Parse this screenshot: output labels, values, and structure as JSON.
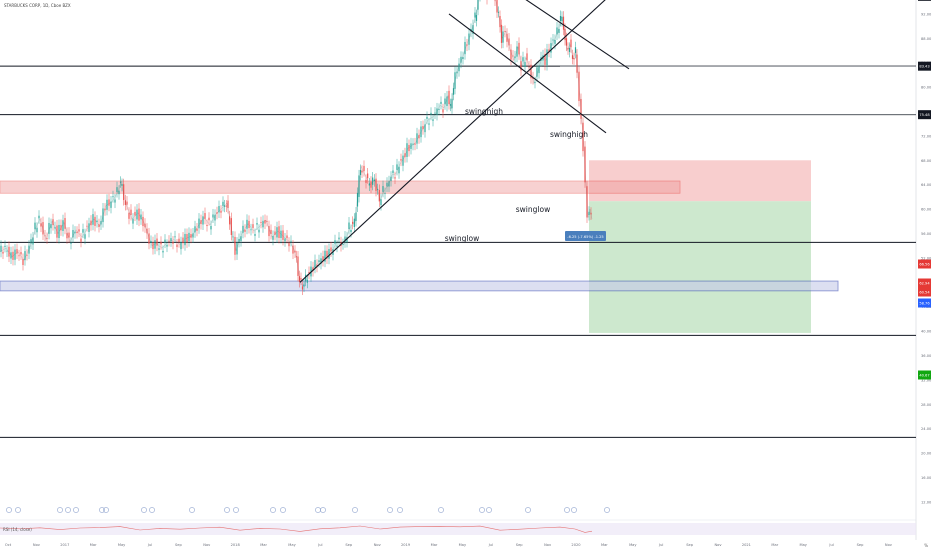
{
  "symbol_line": "STARBUCKS CORP, 1D, Cboe BZX",
  "indicator_label": "RSI (14, close)",
  "scale_button": "%",
  "chart_data": {
    "type": "line",
    "title": "",
    "xlabel": "",
    "ylabel": "",
    "ylim": [
      6,
      119
    ],
    "x_ticks": [
      "Oct",
      "Nov",
      "2017",
      "Mar",
      "May",
      "Jul",
      "Sep",
      "Nov",
      "2018",
      "Mar",
      "May",
      "Jul",
      "Sep",
      "Nov",
      "2019",
      "Mar",
      "May",
      "Jul",
      "Sep",
      "Nov",
      "2020",
      "Mar",
      "May",
      "Jul",
      "Sep",
      "Nov",
      "2021",
      "Mar",
      "May",
      "Jul",
      "Sep",
      "Nov",
      "2022",
      "Mar"
    ],
    "y_ticks": [
      12.0,
      16.0,
      20.0,
      24.0,
      28.0,
      32.0,
      36.0,
      40.0,
      44.0,
      48.0,
      52.0,
      56.0,
      60.0,
      64.0,
      68.0,
      72.0,
      76.0,
      80.0,
      84.0,
      88.0,
      92.0,
      96.0,
      100.0,
      104.0,
      108.0,
      112.0,
      116.0
    ],
    "price_series": [
      [
        0,
        53.0
      ],
      [
        6,
        53.6
      ],
      [
        12,
        52.2
      ],
      [
        18,
        53.0
      ],
      [
        24,
        51.6
      ],
      [
        30,
        53.8
      ],
      [
        36,
        57.0
      ],
      [
        40,
        58.4
      ],
      [
        46,
        55.0
      ],
      [
        52,
        58.0
      ],
      [
        58,
        56.0
      ],
      [
        64,
        57.8
      ],
      [
        70,
        54.6
      ],
      [
        76,
        56.6
      ],
      [
        82,
        55.4
      ],
      [
        88,
        57.0
      ],
      [
        94,
        58.4
      ],
      [
        100,
        57.2
      ],
      [
        106,
        60.6
      ],
      [
        112,
        61.2
      ],
      [
        118,
        62.8
      ],
      [
        121,
        64.6
      ],
      [
        126,
        60.8
      ],
      [
        132,
        58.4
      ],
      [
        138,
        59.4
      ],
      [
        144,
        57.8
      ],
      [
        148,
        55.8
      ],
      [
        152,
        54.0
      ],
      [
        156,
        54.4
      ],
      [
        162,
        53.6
      ],
      [
        168,
        54.6
      ],
      [
        174,
        55.0
      ],
      [
        180,
        54.2
      ],
      [
        186,
        55.2
      ],
      [
        192,
        55.6
      ],
      [
        198,
        57.2
      ],
      [
        204,
        58.6
      ],
      [
        210,
        57.4
      ],
      [
        216,
        59.2
      ],
      [
        222,
        60.2
      ],
      [
        227,
        61.0
      ],
      [
        232,
        56.2
      ],
      [
        236,
        53.2
      ],
      [
        242,
        56.0
      ],
      [
        248,
        57.6
      ],
      [
        254,
        56.4
      ],
      [
        260,
        57.2
      ],
      [
        266,
        58.2
      ],
      [
        272,
        55.4
      ],
      [
        278,
        56.4
      ],
      [
        284,
        55.4
      ],
      [
        290,
        54.6
      ],
      [
        294,
        53.4
      ],
      [
        297,
        51.6
      ],
      [
        300,
        48.0
      ],
      [
        303,
        47.4
      ],
      [
        308,
        49.0
      ],
      [
        314,
        50.6
      ],
      [
        320,
        51.4
      ],
      [
        326,
        52.4
      ],
      [
        332,
        53.2
      ],
      [
        338,
        54.8
      ],
      [
        344,
        54.2
      ],
      [
        350,
        57.0
      ],
      [
        355,
        57.8
      ],
      [
        358,
        62.6
      ],
      [
        361,
        67.0
      ],
      [
        365,
        65.6
      ],
      [
        370,
        64.0
      ],
      [
        375,
        64.8
      ],
      [
        380,
        61.4
      ],
      [
        384,
        63.0
      ],
      [
        388,
        63.8
      ],
      [
        392,
        65.6
      ],
      [
        396,
        65.8
      ],
      [
        400,
        67.4
      ],
      [
        404,
        68.4
      ],
      [
        408,
        70.0
      ],
      [
        412,
        70.4
      ],
      [
        416,
        71.0
      ],
      [
        420,
        72.4
      ],
      [
        424,
        73.4
      ],
      [
        428,
        74.6
      ],
      [
        432,
        75.0
      ],
      [
        436,
        75.6
      ],
      [
        440,
        77.0
      ],
      [
        444,
        76.6
      ],
      [
        448,
        78.6
      ],
      [
        451,
        76.4
      ],
      [
        454,
        80.4
      ],
      [
        458,
        83.0
      ],
      [
        462,
        84.6
      ],
      [
        466,
        86.6
      ],
      [
        470,
        88.4
      ],
      [
        474,
        90.6
      ],
      [
        477,
        92.4
      ],
      [
        479,
        95.4
      ],
      [
        481,
        98.4
      ],
      [
        484,
        96.0
      ],
      [
        488,
        95.2
      ],
      [
        492,
        97.0
      ],
      [
        496,
        94.0
      ],
      [
        499,
        91.6
      ],
      [
        502,
        88.0
      ],
      [
        506,
        89.2
      ],
      [
        510,
        86.2
      ],
      [
        514,
        84.4
      ],
      [
        518,
        86.6
      ],
      [
        522,
        83.4
      ],
      [
        526,
        84.8
      ],
      [
        530,
        83.2
      ],
      [
        534,
        80.6
      ],
      [
        538,
        82.6
      ],
      [
        542,
        85.0
      ],
      [
        546,
        84.4
      ],
      [
        550,
        86.4
      ],
      [
        554,
        87.6
      ],
      [
        558,
        89.0
      ],
      [
        561,
        91.6
      ],
      [
        564,
        90.0
      ],
      [
        567,
        86.0
      ],
      [
        570,
        87.0
      ],
      [
        573,
        84.6
      ],
      [
        576,
        86.0
      ],
      [
        578,
        82.0
      ],
      [
        580,
        78.4
      ],
      [
        582,
        74.0
      ],
      [
        584,
        70.2
      ],
      [
        586,
        64.0
      ],
      [
        588,
        58.6
      ],
      [
        590,
        60.0
      ],
      [
        592,
        58.4
      ]
    ],
    "rsi_series": [
      [
        0,
        58
      ],
      [
        20,
        52
      ],
      [
        40,
        60
      ],
      [
        60,
        45
      ],
      [
        80,
        58
      ],
      [
        100,
        62
      ],
      [
        120,
        70
      ],
      [
        140,
        42
      ],
      [
        160,
        55
      ],
      [
        180,
        48
      ],
      [
        200,
        58
      ],
      [
        220,
        65
      ],
      [
        240,
        40
      ],
      [
        260,
        55
      ],
      [
        280,
        50
      ],
      [
        300,
        30
      ],
      [
        320,
        52
      ],
      [
        340,
        60
      ],
      [
        360,
        75
      ],
      [
        380,
        50
      ],
      [
        400,
        66
      ],
      [
        420,
        70
      ],
      [
        440,
        72
      ],
      [
        460,
        68
      ],
      [
        480,
        74
      ],
      [
        500,
        40
      ],
      [
        520,
        48
      ],
      [
        540,
        58
      ],
      [
        560,
        66
      ],
      [
        575,
        50
      ],
      [
        585,
        22
      ],
      [
        592,
        32
      ]
    ],
    "horizontal_levels": [
      {
        "price": 100.52,
        "label": "100.52"
      },
      {
        "price": 94.88,
        "label": "94.88"
      },
      {
        "price": 83.43,
        "label": "83.43"
      },
      {
        "price": 75.48,
        "label": "75.48"
      },
      {
        "price": 54.55,
        "label": "54.55"
      },
      {
        "price": 39.3
      },
      {
        "price": 22.58
      }
    ],
    "price_tags": [
      {
        "label": "100.52",
        "color": "#131722"
      },
      {
        "label": "94.88",
        "color": "#131722"
      },
      {
        "label": "83.43",
        "color": "#131722"
      },
      {
        "label": "75.48",
        "color": "#131722"
      },
      {
        "label": "66.56",
        "color": "#e53935"
      },
      {
        "label": "62.94",
        "color": "#e53935"
      },
      {
        "label": "60.54",
        "color": "#e53935"
      },
      {
        "label": "58.76",
        "color": "#2962ff"
      },
      {
        "label": "40.67",
        "color": "#11a711"
      }
    ],
    "annotations": [
      {
        "text": "swinghigh"
      },
      {
        "text": "swinghigh"
      },
      {
        "text": "swinglow"
      },
      {
        "text": "swinglow"
      }
    ],
    "measure_label": "-6.25 (-7.65%) -1.25",
    "trendlines": [
      {
        "from": [
          300,
          48.0
        ],
        "to": [
          613,
          95.5
        ]
      },
      {
        "from": [
          449,
          92.0
        ],
        "to": [
          606,
          72.5
        ]
      },
      {
        "from": [
          479,
          99.5
        ],
        "to": [
          629,
          83.0
        ]
      }
    ],
    "zones": {
      "red_band": {
        "top": 64.6,
        "bottom": 62.6
      },
      "blue_band": {
        "top": 48.2,
        "bottom": 46.6
      },
      "stop_box": {
        "top": 68.0,
        "bottom": 61.3
      },
      "target_box": {
        "top": 61.3,
        "bottom": 39.7
      }
    },
    "colors": {
      "up": "#26a69a",
      "down": "#ef5350",
      "line": "#131722",
      "rsi": "#e57373",
      "stop": "#f7c6c6",
      "target": "#c8e6c9",
      "band_red": "#e53935",
      "band_blue": "#3f51b5"
    }
  }
}
